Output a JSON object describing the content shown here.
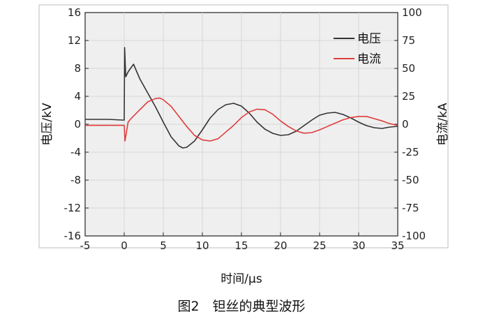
{
  "figure": {
    "caption": "图2　钽丝的典型波形"
  },
  "chart_data": {
    "type": "line",
    "title": "",
    "xlabel": "时间/μs",
    "ylabel_left": "电压/kV",
    "ylabel_right": "电流/kA",
    "xlim": [
      -5,
      35
    ],
    "ylim_left": [
      -16,
      16
    ],
    "ylim_right": [
      -100,
      100
    ],
    "xticks": [
      -5,
      0,
      5,
      10,
      15,
      20,
      25,
      30,
      35
    ],
    "yticks_left": [
      16,
      12,
      8,
      4,
      0,
      -4,
      -8,
      -12,
      -16
    ],
    "yticks_right": [
      100,
      75,
      50,
      25,
      0,
      -25,
      -50,
      -75,
      -100
    ],
    "grid": true,
    "legend_position": "top-right",
    "series": [
      {
        "name": "电压",
        "axis": "left",
        "color": "#333333",
        "x": [
          -5,
          -2,
          -0.2,
          0,
          0.05,
          0.2,
          0.5,
          0.8,
          1.2,
          1.5,
          2,
          3,
          4,
          5,
          6,
          7,
          7.5,
          8,
          9,
          10,
          11,
          12,
          13,
          14,
          15,
          16,
          17,
          18,
          19,
          20,
          21,
          22,
          23,
          24,
          25,
          26,
          27,
          28,
          29,
          30,
          31,
          32,
          33,
          34,
          35
        ],
        "values": [
          0.7,
          0.7,
          0.6,
          0.6,
          11,
          6.8,
          7.5,
          8,
          8.6,
          7.8,
          6.5,
          4.5,
          2.5,
          0.3,
          -1.8,
          -3.1,
          -3.4,
          -3.3,
          -2.4,
          -0.8,
          0.9,
          2.1,
          2.8,
          3.0,
          2.6,
          1.6,
          0.3,
          -0.7,
          -1.3,
          -1.6,
          -1.5,
          -1.0,
          -0.2,
          0.6,
          1.3,
          1.6,
          1.7,
          1.4,
          0.9,
          0.3,
          -0.2,
          -0.5,
          -0.6,
          -0.4,
          -0.3
        ]
      },
      {
        "name": "电流",
        "axis": "right",
        "color": "#e03c3c",
        "x": [
          -5,
          -2,
          -0.2,
          0,
          0.1,
          0.5,
          1,
          2,
          3,
          4,
          4.5,
          5,
          6,
          7,
          8,
          9,
          10,
          11,
          12,
          13,
          14,
          15,
          16,
          17,
          18,
          19,
          20,
          21,
          22,
          23,
          24,
          25,
          26,
          27,
          28,
          29,
          30,
          31,
          32,
          33,
          34,
          35
        ],
        "values": [
          -1,
          -1,
          -1,
          -1,
          -15,
          2,
          6,
          13,
          20,
          23,
          23.5,
          22,
          16,
          7,
          -2,
          -10,
          -14,
          -15,
          -13,
          -7,
          -1,
          6,
          11,
          13.5,
          13,
          9,
          3,
          -2,
          -6,
          -8,
          -7.5,
          -5,
          -2,
          1,
          4,
          6,
          7,
          7,
          5,
          3,
          0.5,
          -1
        ]
      }
    ]
  }
}
